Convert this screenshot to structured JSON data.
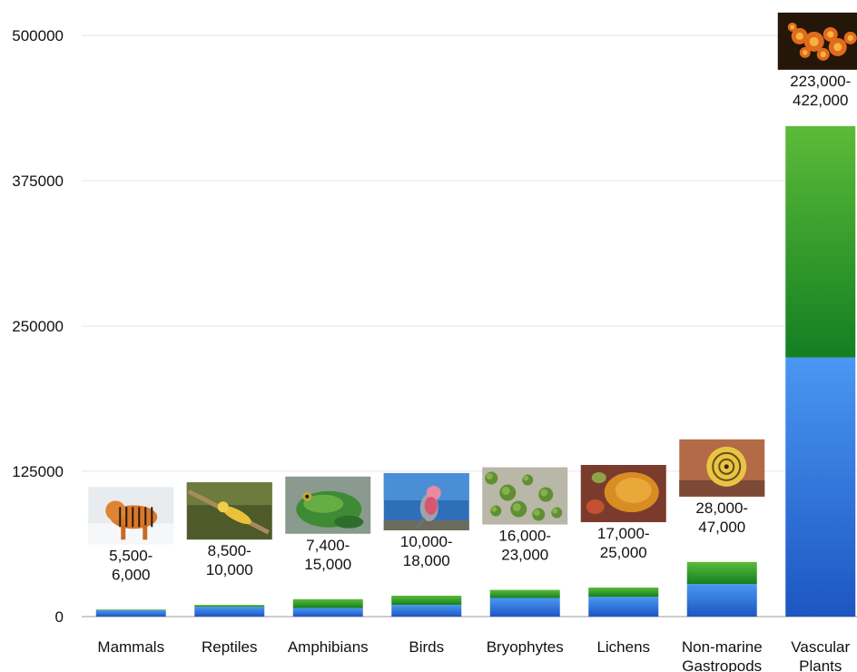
{
  "chart_data": {
    "type": "bar",
    "stacked": true,
    "ylim": [
      0,
      500000
    ],
    "yticks": [
      0,
      125000,
      250000,
      375000,
      500000
    ],
    "ytick_labels": [
      "0",
      "125000",
      "250000",
      "375000",
      "500000"
    ],
    "grid": true,
    "categories": [
      {
        "label": [
          "Mammals"
        ],
        "low": 5500,
        "high": 6000,
        "value_label": [
          "5,500-",
          "6,000"
        ],
        "photo": "tiger-photo-icon"
      },
      {
        "label": [
          "Reptiles"
        ],
        "low": 8500,
        "high": 10000,
        "value_label": [
          "8,500-",
          "10,000"
        ],
        "photo": "lizard-photo-icon"
      },
      {
        "label": [
          "Amphibians"
        ],
        "low": 7400,
        "high": 15000,
        "value_label": [
          "7,400-",
          "15,000"
        ],
        "photo": "frog-photo-icon"
      },
      {
        "label": [
          "Birds"
        ],
        "low": 10000,
        "high": 18000,
        "value_label": [
          "10,000-",
          "18,000"
        ],
        "photo": "parrot-photo-icon"
      },
      {
        "label": [
          "Bryophytes"
        ],
        "low": 16000,
        "high": 23000,
        "value_label": [
          "16,000-",
          "23,000"
        ],
        "photo": "moss-photo-icon"
      },
      {
        "label": [
          "Lichens"
        ],
        "low": 17000,
        "high": 25000,
        "value_label": [
          "17,000-",
          "25,000"
        ],
        "photo": "lichen-photo-icon"
      },
      {
        "label": [
          "Non-marine",
          "Gastropods"
        ],
        "low": 28000,
        "high": 47000,
        "value_label": [
          "28,000-",
          "47,000"
        ],
        "photo": "snail-photo-icon"
      },
      {
        "label": [
          "Vascular",
          "Plants"
        ],
        "low": 223000,
        "high": 422000,
        "value_label": [
          "223,000-",
          "422,000"
        ],
        "photo": "flower-photo-icon"
      }
    ],
    "colors": {
      "low_top": "#4a97f2",
      "low_bottom": "#1d56c2",
      "range_top": "#5cbb38",
      "range_bottom": "#137f22"
    }
  }
}
